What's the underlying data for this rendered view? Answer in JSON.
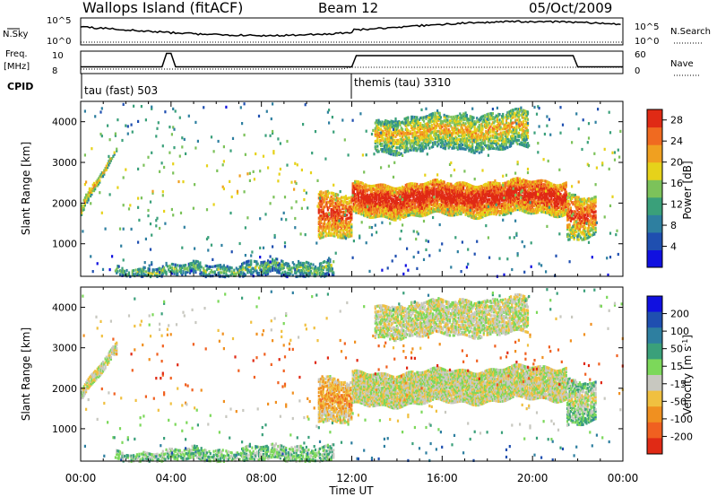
{
  "header": {
    "title": "Wallops Island (fitACF)",
    "beam": "Beam 12",
    "date": "05/Oct/2009"
  },
  "noise_panel": {
    "left_label": "N.Sky",
    "left_ticks": [
      "10^5",
      "10^0"
    ],
    "right_ticks": [
      "10^5",
      "10^0"
    ],
    "right_label": "N.Search"
  },
  "freq_panel": {
    "left_label_top": "Freq.",
    "left_label_bottom": "[MHz]",
    "left_ticks": [
      10,
      8
    ],
    "right_ticks": [
      60,
      0
    ],
    "right_label": "Nave",
    "cpid_label": "CPID",
    "cpid_entries": [
      {
        "text": "tau (fast) 503",
        "start_hour": 0
      },
      {
        "text": "themis (tau) 3310",
        "start_hour": 12
      }
    ]
  },
  "x_axis": {
    "label": "Time UT",
    "tick_labels": [
      "00:00",
      "04:00",
      "08:00",
      "12:00",
      "16:00",
      "20:00",
      "00:00"
    ],
    "ticks_hours": [
      0,
      4,
      8,
      12,
      16,
      20,
      24
    ],
    "range_hours": [
      0,
      24
    ]
  },
  "colors": {
    "power_scale": [
      "#1010e0",
      "#1f4fb0",
      "#2e7fa0",
      "#3aa07a",
      "#7cc25a",
      "#e6d21a",
      "#f0a020",
      "#f06a20",
      "#e02a15"
    ],
    "velocity_scale": [
      "#1010e0",
      "#1f4fb0",
      "#2e7fa0",
      "#3aa07a",
      "#7cd85a",
      "#c8c8c0",
      "#f0c040",
      "#f09020",
      "#f06020",
      "#e02a15"
    ]
  },
  "chart_data": [
    {
      "type": "heatmap",
      "name": "power",
      "ylabel": "Slant Range [km]",
      "y_ticks": [
        1000,
        2000,
        3000,
        4000
      ],
      "ylim": [
        200,
        4500
      ],
      "colorbar_label": "Power [dB]",
      "colorbar_ticks": [
        4,
        8,
        12,
        16,
        20,
        24,
        28
      ],
      "colorbar_range": [
        0,
        30
      ],
      "features": [
        {
          "t": [
            0.0,
            1.6
          ],
          "r0": [
            1750,
            3300
          ],
          "r1": [
            2000,
            3350
          ],
          "level": [
            3,
            6
          ],
          "density": 0.75
        },
        {
          "t": [
            1.5,
            11.2
          ],
          "r0": [
            250,
            250
          ],
          "r1": [
            450,
            650
          ],
          "level": [
            1,
            4
          ],
          "density": 0.5
        },
        {
          "t": [
            10.5,
            12.0
          ],
          "r0": [
            1250,
            1150
          ],
          "r1": [
            2400,
            2100
          ],
          "level": [
            4,
            8
          ],
          "density": 0.6
        },
        {
          "t": [
            12.0,
            21.5
          ],
          "r0": [
            1700,
            1800
          ],
          "r1": [
            2500,
            2600
          ],
          "level": [
            4,
            9
          ],
          "density": 0.8
        },
        {
          "t": [
            13.0,
            19.8
          ],
          "r0": [
            3300,
            3400
          ],
          "r1": [
            4100,
            4300
          ],
          "level": [
            2,
            6
          ],
          "density": 0.55
        },
        {
          "t": [
            21.5,
            22.8
          ],
          "r0": [
            1150,
            1200
          ],
          "r1": [
            2300,
            2100
          ],
          "level": [
            3,
            8
          ],
          "density": 0.6
        },
        {
          "t": [
            0.0,
            24.0
          ],
          "r0": [
            200,
            200
          ],
          "r1": [
            4500,
            4500
          ],
          "level": [
            0,
            5
          ],
          "density": 0.012
        }
      ]
    },
    {
      "type": "heatmap",
      "name": "velocity",
      "ylabel": "Slant Range [km]",
      "y_ticks": [
        1000,
        2000,
        3000,
        4000
      ],
      "ylim": [
        200,
        4500
      ],
      "colorbar_label": "Velocity [m s^-1]",
      "colorbar_ticks": [
        "200",
        "100",
        "50",
        "15",
        "-15",
        "-50",
        "-100",
        "-200"
      ],
      "features": [
        {
          "t": [
            0.0,
            1.6
          ],
          "r0": [
            1750,
            2900
          ],
          "r1": [
            2000,
            3150
          ],
          "level": [
            5,
            5
          ],
          "density": 0.75
        },
        {
          "t": [
            1.5,
            11.2
          ],
          "r0": [
            250,
            250
          ],
          "r1": [
            450,
            650
          ],
          "level": [
            4,
            4
          ],
          "density": 0.5
        },
        {
          "t": [
            10.5,
            12.0
          ],
          "r0": [
            1250,
            1150
          ],
          "r1": [
            2400,
            2100
          ],
          "level": [
            5,
            7
          ],
          "density": 0.6
        },
        {
          "t": [
            12.0,
            21.5
          ],
          "r0": [
            1600,
            1800
          ],
          "r1": [
            2400,
            2600
          ],
          "level": [
            5,
            5
          ],
          "density": 0.85
        },
        {
          "t": [
            13.0,
            19.8
          ],
          "r0": [
            3300,
            3400
          ],
          "r1": [
            4100,
            4300
          ],
          "level": [
            5,
            5
          ],
          "density": 0.6
        },
        {
          "t": [
            21.5,
            22.8
          ],
          "r0": [
            1150,
            1200
          ],
          "r1": [
            2300,
            2100
          ],
          "level": [
            3,
            5
          ],
          "density": 0.6
        },
        {
          "t": [
            0.0,
            24.0
          ],
          "r0": [
            200,
            200
          ],
          "r1": [
            4500,
            4500
          ],
          "level": [
            0,
            9
          ],
          "density": 0.01
        }
      ]
    }
  ]
}
